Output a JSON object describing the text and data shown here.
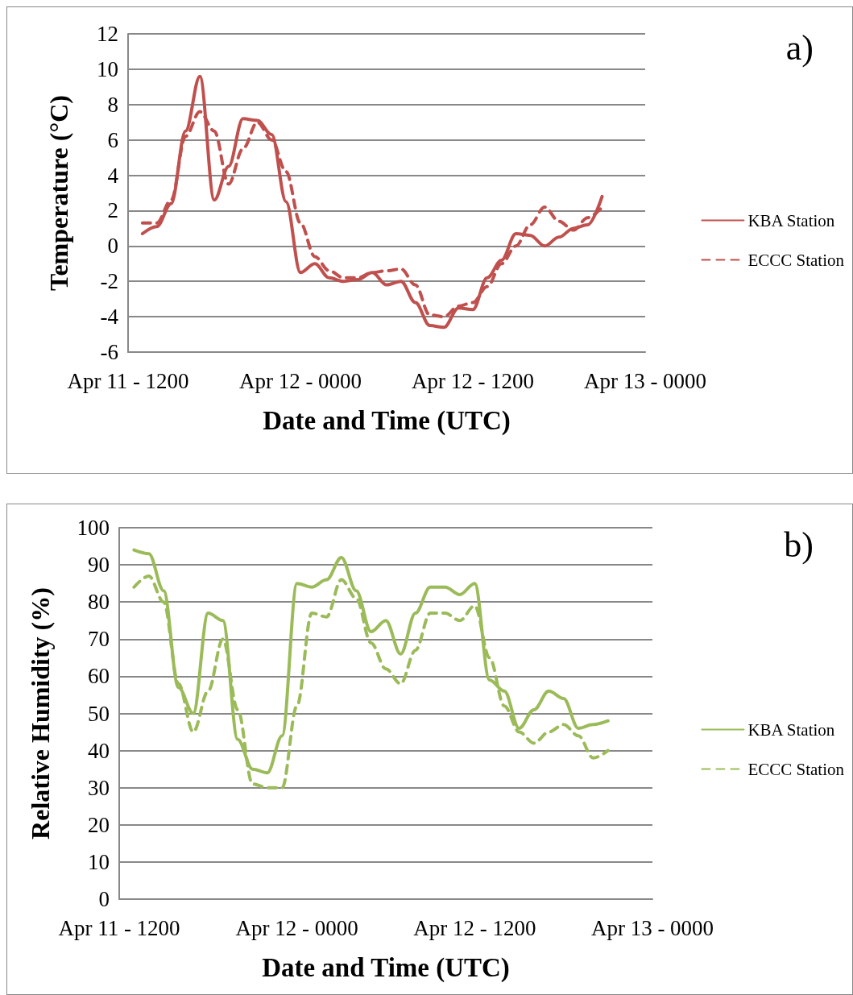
{
  "chart_data": [
    {
      "type": "line",
      "xlabel": "Date and Time (UTC)",
      "ylabel": "Temperature (°C)",
      "annotations": [
        "a)"
      ],
      "categories": [
        "Apr 11 - 1200",
        null,
        null,
        null,
        null,
        null,
        null,
        null,
        null,
        null,
        null,
        null,
        "Apr 12 - 0000",
        null,
        null,
        null,
        null,
        null,
        null,
        null,
        null,
        null,
        null,
        null,
        "Apr 12 - 1200",
        null,
        null,
        null,
        null,
        null,
        null,
        null,
        null,
        null,
        null,
        null,
        "Apr 13 - 0000"
      ],
      "ylim": [
        -6,
        12
      ],
      "yticks": [
        -6,
        -4,
        -2,
        0,
        2,
        4,
        6,
        8,
        10,
        12
      ],
      "grid": "y",
      "legend": "right",
      "marker": "none",
      "series": [
        {
          "name": "KBA Station",
          "color": "#c0504d",
          "line_style": "solid",
          "values": [
            null,
            0.7,
            1.1,
            2.4,
            6.5,
            9.6,
            2.6,
            4.5,
            7.2,
            7.1,
            6.3,
            2.5,
            -1.5,
            -1.0,
            -1.8,
            -2.0,
            -1.9,
            -1.5,
            -2.2,
            -2.0,
            -3.2,
            -4.5,
            -4.6,
            -3.5,
            -3.6,
            -1.8,
            -0.8,
            0.7,
            0.6,
            0.0,
            0.5,
            1.0,
            1.2,
            2.8,
            null,
            null,
            null
          ]
        },
        {
          "name": "ECCC Station",
          "color": "#c0504d",
          "line_style": "dashed",
          "values": [
            null,
            1.3,
            1.3,
            2.6,
            6.2,
            7.6,
            6.5,
            3.5,
            5.5,
            7.0,
            6.0,
            4.2,
            1.3,
            -0.6,
            -1.4,
            -1.8,
            -1.8,
            -1.5,
            -1.4,
            -1.3,
            -2.2,
            -3.9,
            -4.0,
            -3.4,
            -3.2,
            -2.3,
            -1.0,
            0.0,
            1.2,
            2.2,
            1.4,
            0.9,
            1.6,
            2.2,
            null,
            null,
            null
          ]
        }
      ]
    },
    {
      "type": "line",
      "xlabel": "Date and Time (UTC)",
      "ylabel": "Relative Humidity (%)",
      "annotations": [
        "b)"
      ],
      "categories": [
        "Apr 11 - 1200",
        null,
        null,
        null,
        null,
        null,
        null,
        null,
        null,
        null,
        null,
        null,
        "Apr 12 - 0000",
        null,
        null,
        null,
        null,
        null,
        null,
        null,
        null,
        null,
        null,
        null,
        "Apr 12 - 1200",
        null,
        null,
        null,
        null,
        null,
        null,
        null,
        null,
        null,
        null,
        null,
        "Apr 13 - 0000"
      ],
      "ylim": [
        0,
        100
      ],
      "yticks": [
        0,
        10,
        20,
        30,
        40,
        50,
        60,
        70,
        80,
        90,
        100
      ],
      "grid": "y",
      "legend": "right",
      "marker": "none",
      "series": [
        {
          "name": "KBA Station",
          "color": "#9bbb59",
          "line_style": "solid",
          "values": [
            null,
            94,
            93,
            83,
            57,
            50,
            77,
            75,
            43,
            35,
            34,
            44,
            85,
            84,
            86,
            92,
            83,
            72,
            75,
            66,
            77,
            84,
            84,
            82,
            85,
            59,
            56,
            46,
            51,
            56,
            54,
            46,
            47,
            48,
            null,
            null,
            null
          ]
        },
        {
          "name": "ECCC Station",
          "color": "#9bbb59",
          "line_style": "dashed",
          "values": [
            null,
            84,
            87,
            80,
            58,
            45,
            56,
            70,
            51,
            31,
            30,
            30,
            52,
            77,
            76,
            86,
            81,
            69,
            62,
            58,
            67,
            77,
            77,
            75,
            79,
            65,
            52,
            45,
            42,
            45,
            47,
            44,
            38,
            40,
            null,
            null,
            null
          ]
        }
      ]
    }
  ]
}
